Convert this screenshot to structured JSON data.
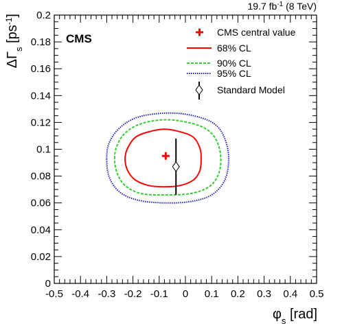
{
  "chart_data": {
    "type": "scatter",
    "experiment": "CMS",
    "luminosity": {
      "value": "19.7 fb",
      "superscript": "-1",
      "energy": " (8 TeV)"
    },
    "xlabel": {
      "main": "φ",
      "sub": "s",
      "unit": " [rad]"
    },
    "ylabel": {
      "main": "ΔΓ",
      "sub": "s",
      "unit_open": " [ps",
      "sup": "-1",
      "unit_close": "]"
    },
    "xlim": [
      -0.5,
      0.5
    ],
    "ylim": [
      0,
      0.2
    ],
    "x_ticks": [
      "-0.5",
      "-0.4",
      "-0.3",
      "-0.2",
      "-0.1",
      "0",
      "0.1",
      "0.2",
      "0.3",
      "0.4",
      "0.5"
    ],
    "y_ticks": [
      "0",
      "0.02",
      "0.04",
      "0.06",
      "0.08",
      "0.1",
      "0.12",
      "0.14",
      "0.16",
      "0.18",
      "0.2"
    ],
    "legend": [
      "CMS central value",
      "68% CL",
      "90% CL",
      "95% CL",
      "Standard Model"
    ],
    "colors": {
      "central": "#ff0000",
      "cl68": "#ff0000",
      "cl90": "#33cc33",
      "cl95": "#1a1acc",
      "sm": "#000000"
    },
    "central_value": {
      "phi_s": -0.075,
      "dgamma_s": 0.095
    },
    "standard_model": {
      "phi_s": -0.036,
      "dgamma_s": 0.087,
      "dgamma_s_err": 0.021
    },
    "contours": {
      "cl68": [
        [
          -0.23,
          0.093
        ],
        [
          -0.22,
          0.101
        ],
        [
          -0.19,
          0.109
        ],
        [
          -0.14,
          0.113
        ],
        [
          -0.08,
          0.115
        ],
        [
          -0.02,
          0.113
        ],
        [
          0.03,
          0.109
        ],
        [
          0.055,
          0.101
        ],
        [
          0.06,
          0.093
        ],
        [
          0.055,
          0.084
        ],
        [
          0.03,
          0.077
        ],
        [
          -0.02,
          0.073
        ],
        [
          -0.08,
          0.072
        ],
        [
          -0.14,
          0.073
        ],
        [
          -0.19,
          0.077
        ],
        [
          -0.22,
          0.084
        ]
      ],
      "cl90": [
        [
          -0.27,
          0.093
        ],
        [
          -0.26,
          0.103
        ],
        [
          -0.23,
          0.112
        ],
        [
          -0.17,
          0.119
        ],
        [
          -0.08,
          0.122
        ],
        [
          0.01,
          0.12
        ],
        [
          0.08,
          0.115
        ],
        [
          0.12,
          0.106
        ],
        [
          0.135,
          0.093
        ],
        [
          0.125,
          0.081
        ],
        [
          0.09,
          0.072
        ],
        [
          0.02,
          0.067
        ],
        [
          -0.08,
          0.066
        ],
        [
          -0.17,
          0.067
        ],
        [
          -0.23,
          0.073
        ],
        [
          -0.26,
          0.082
        ]
      ],
      "cl95": [
        [
          -0.3,
          0.093
        ],
        [
          -0.29,
          0.105
        ],
        [
          -0.25,
          0.116
        ],
        [
          -0.18,
          0.124
        ],
        [
          -0.07,
          0.127
        ],
        [
          0.03,
          0.125
        ],
        [
          0.11,
          0.119
        ],
        [
          0.15,
          0.108
        ],
        [
          0.165,
          0.093
        ],
        [
          0.15,
          0.077
        ],
        [
          0.1,
          0.066
        ],
        [
          0.02,
          0.061
        ],
        [
          -0.08,
          0.06
        ],
        [
          -0.18,
          0.062
        ],
        [
          -0.25,
          0.068
        ],
        [
          -0.29,
          0.079
        ]
      ]
    }
  }
}
